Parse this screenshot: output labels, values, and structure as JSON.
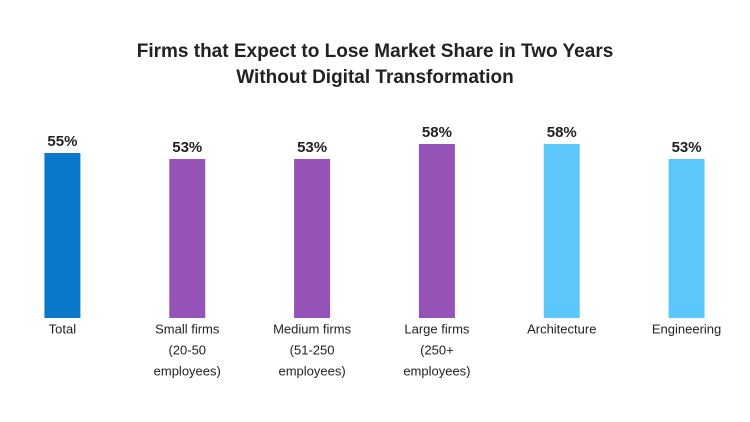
{
  "chart_data": {
    "type": "bar",
    "title": [
      "Firms that Expect to Lose Market Share in Two Years",
      "Without Digital Transformation"
    ],
    "categories": [
      [
        "Total"
      ],
      [
        "Small firms",
        "(20-50",
        "employees)"
      ],
      [
        "Medium firms",
        "(51-250",
        "employees)"
      ],
      [
        "Large firms",
        "(250+",
        "employees)"
      ],
      [
        "Architecture"
      ],
      [
        "Engineering"
      ]
    ],
    "values": [
      55,
      53,
      53,
      58,
      58,
      53
    ],
    "value_labels": [
      "55%",
      "53%",
      "53%",
      "58%",
      "58%",
      "53%"
    ],
    "colors": [
      "#0b79c9",
      "#9553b7",
      "#9553b7",
      "#9553b7",
      "#5cc8fa",
      "#5cc8fa"
    ],
    "ylim": [
      0,
      100
    ]
  }
}
